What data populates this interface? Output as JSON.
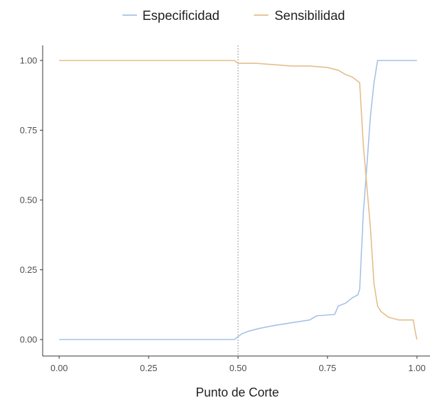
{
  "chart_data": {
    "type": "line",
    "title": "",
    "xlabel": "Punto de Corte",
    "ylabel": "",
    "xlim": [
      0,
      1
    ],
    "ylim": [
      0,
      1
    ],
    "x_ticks": [
      0,
      0.25,
      0.5,
      0.75,
      1
    ],
    "x_tick_labels": [
      "0.00",
      "0.25",
      "0.50",
      "0.75",
      "1.00"
    ],
    "y_ticks": [
      0,
      0.25,
      0.5,
      0.75,
      1
    ],
    "y_tick_labels": [
      "0.00",
      "0.25",
      "0.50",
      "0.75",
      "1.00"
    ],
    "grid": false,
    "legend_position": "top",
    "reference_line": {
      "orientation": "vertical",
      "x": 0.5,
      "style": "dotted"
    },
    "series": [
      {
        "name": "Especificidad",
        "color": "#a6c0e8",
        "x": [
          0,
          0.49,
          0.5,
          0.51,
          0.53,
          0.56,
          0.6,
          0.65,
          0.7,
          0.72,
          0.77,
          0.78,
          0.8,
          0.82,
          0.835,
          0.84,
          0.85,
          0.86,
          0.87,
          0.88,
          0.89,
          0.93,
          0.96,
          1
        ],
        "values": [
          0,
          0,
          0.01,
          0.02,
          0.03,
          0.04,
          0.05,
          0.06,
          0.07,
          0.085,
          0.09,
          0.12,
          0.13,
          0.15,
          0.16,
          0.18,
          0.45,
          0.62,
          0.8,
          0.92,
          1,
          1,
          1,
          1
        ]
      },
      {
        "name": "Sensibilidad",
        "color": "#e3bd8a",
        "x": [
          0,
          0.49,
          0.5,
          0.55,
          0.6,
          0.65,
          0.7,
          0.75,
          0.78,
          0.8,
          0.82,
          0.83,
          0.84,
          0.85,
          0.86,
          0.87,
          0.875,
          0.88,
          0.89,
          0.9,
          0.92,
          0.95,
          0.97,
          0.99,
          0.995,
          1
        ],
        "values": [
          1,
          1,
          0.99,
          0.99,
          0.985,
          0.98,
          0.98,
          0.975,
          0.965,
          0.95,
          0.94,
          0.93,
          0.92,
          0.7,
          0.55,
          0.4,
          0.3,
          0.2,
          0.12,
          0.1,
          0.08,
          0.07,
          0.07,
          0.07,
          0.03,
          0
        ]
      }
    ]
  }
}
